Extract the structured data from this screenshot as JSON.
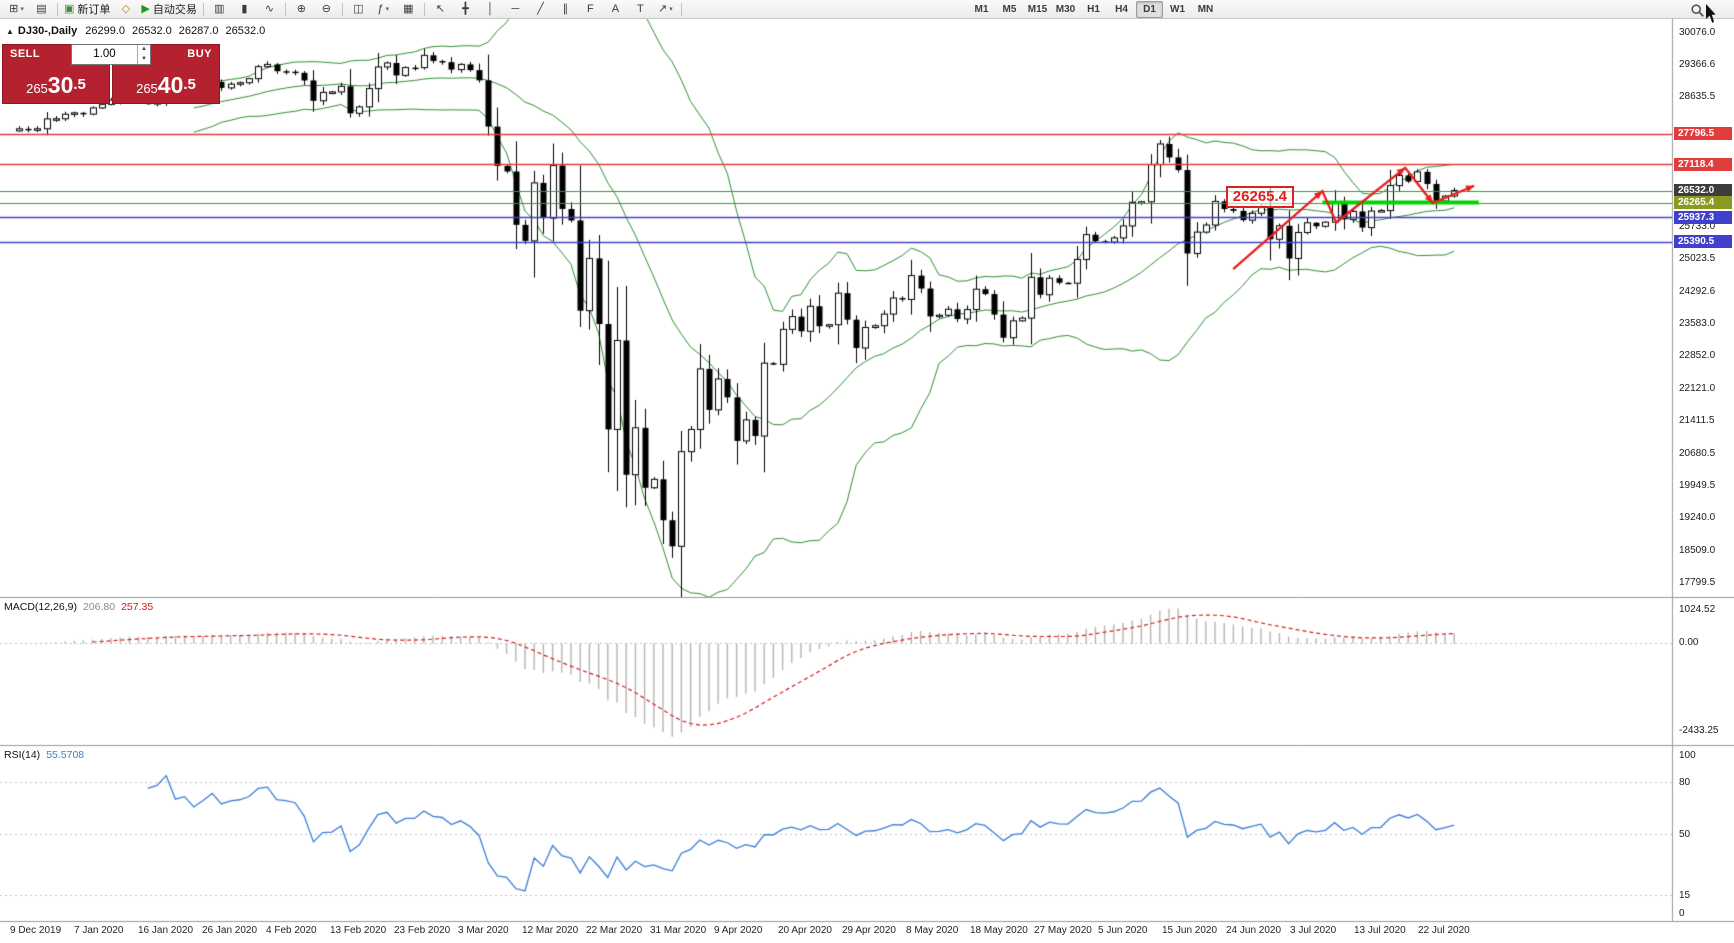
{
  "toolbar": {
    "caret_glyph": "▾",
    "buttons": [
      {
        "name": "new-chart-button",
        "glyph": "⊞",
        "dropdown": true
      },
      {
        "name": "profiles-button",
        "glyph": "▤"
      },
      {
        "type": "sep"
      },
      {
        "name": "new-order-button",
        "glyph": "▣",
        "glyph_color": "#3f8a3f",
        "label": "新订单"
      },
      {
        "name": "metaeditor-button",
        "glyph": "◇",
        "glyph_color": "#b58a1e"
      },
      {
        "name": "autotrading-button",
        "glyph": "▶",
        "glyph_color": "#1a9c1a",
        "label": "自动交易"
      },
      {
        "type": "sep"
      },
      {
        "name": "bar-chart-button",
        "glyph": "▥"
      },
      {
        "name": "candlestick-chart-button",
        "glyph": "▮"
      },
      {
        "name": "line-chart-button",
        "glyph": "∿"
      },
      {
        "type": "sep"
      },
      {
        "name": "zoom-in-button",
        "glyph": "⊕"
      },
      {
        "name": "zoom-out-button",
        "glyph": "⊖"
      },
      {
        "type": "sep"
      },
      {
        "name": "tile-windows-button",
        "glyph": "◫"
      },
      {
        "name": "indicators-button",
        "glyph": "ƒ",
        "dropdown": true
      },
      {
        "name": "objects-list-button",
        "glyph": "▦"
      },
      {
        "type": "sep"
      },
      {
        "name": "cursor-button",
        "glyph": "↖"
      },
      {
        "name": "crosshair-button",
        "glyph": "╋"
      },
      {
        "name": "vertical-line-button",
        "glyph": "│"
      },
      {
        "name": "horizontal-line-button",
        "glyph": "─"
      },
      {
        "name": "trendline-button",
        "glyph": "╱"
      },
      {
        "name": "channel-button",
        "glyph": "∥"
      },
      {
        "name": "fibonacci-button",
        "glyph": "F"
      },
      {
        "name": "text-button",
        "glyph": "A"
      },
      {
        "name": "label-button",
        "glyph": "T"
      },
      {
        "name": "arrow-tools-button",
        "glyph": "↗",
        "dropdown": true
      },
      {
        "type": "sep"
      }
    ],
    "timeframes": [
      {
        "label": "M1"
      },
      {
        "label": "M5"
      },
      {
        "label": "M15"
      },
      {
        "label": "M30"
      },
      {
        "label": "H1"
      },
      {
        "label": "H4"
      },
      {
        "label": "D1",
        "active": true
      },
      {
        "label": "W1"
      },
      {
        "label": "MN"
      }
    ]
  },
  "info": {
    "collapse_glyph": "▲",
    "symbol": "DJ30-,Daily",
    "open": "26299.0",
    "high": "26532.0",
    "low": "26287.0",
    "close": "26532.0"
  },
  "trade_panel": {
    "sell_label": "SELL",
    "buy_label": "BUY",
    "volume": "1.00",
    "spin_up_glyph": "▲",
    "spin_down_glyph": "▼",
    "sell_main": "265",
    "sell_big": "30",
    "sell_pip": ".5",
    "buy_main": "265",
    "buy_big": "40",
    "buy_pip": ".5"
  },
  "chart": {
    "axis_ticks": [
      "30076.0",
      "29366.6",
      "28635.5",
      "25733.0",
      "25023.5",
      "24292.6",
      "23583.0",
      "22852.0",
      "22121.0",
      "21411.5",
      "20680.5",
      "19949.5",
      "19240.0",
      "18509.0",
      "17799.5"
    ],
    "price_tags": [
      {
        "value": "27796.5",
        "color": "#e23d3d"
      },
      {
        "value": "27118.4",
        "color": "#e23d3d"
      },
      {
        "value": "26532.0",
        "color": "#3d3d3d"
      },
      {
        "value": "26265.4",
        "color": "#8a9a20"
      },
      {
        "value": "25937.3",
        "color": "#4040cc"
      },
      {
        "value": "25390.5",
        "color": "#4040cc"
      }
    ],
    "hlines": [
      {
        "price": 27796.5,
        "color": "#e23d3d",
        "width": 1.5
      },
      {
        "price": 27118.4,
        "color": "#e23d3d",
        "width": 1.5
      },
      {
        "price": 26532.0,
        "color": "#1fa81f",
        "width": 1.2
      },
      {
        "price": 26265.4,
        "color": "#1fa81f",
        "width": 1.2
      },
      {
        "price": 25937.3,
        "color": "#4040cc",
        "width": 1.5
      },
      {
        "price": 25390.5,
        "color": "#4040cc",
        "width": 1.5
      }
    ]
  },
  "annotations": {
    "label_box": {
      "text": "26265.4",
      "index": 131.5,
      "price": 26400
    },
    "support_segment": {
      "price": 26265.4,
      "start_index": 142,
      "end_index": 159,
      "color": "#00d400",
      "width": 4
    },
    "trend_arrows": {
      "color": "#e62020",
      "points": [
        [
          132.3,
          24780
        ],
        [
          142,
          26520
        ],
        [
          143.5,
          25820
        ],
        [
          151,
          27040
        ],
        [
          154,
          26255
        ],
        [
          158.5,
          26640
        ]
      ],
      "arrow_at": [
        1,
        3,
        4,
        5
      ]
    }
  },
  "macd": {
    "label": "MACD(12,26,9)",
    "values": [
      "206.80",
      "257.35"
    ],
    "axis": [
      "1024.52",
      "0.00",
      "-2433.25"
    ],
    "range": [
      1024.52,
      -2433.25
    ],
    "params": [
      12,
      26,
      9
    ]
  },
  "rsi": {
    "label": "RSI(14)",
    "value": "55.5708",
    "axis": [
      100,
      80,
      50,
      15,
      0
    ],
    "levels": [
      80,
      50,
      15
    ],
    "period": 14
  },
  "dates": [
    "9 Dec 2019",
    "7 Jan 2020",
    "16 Jan 2020",
    "26 Jan 2020",
    "4 Feb 2020",
    "13 Feb 2020",
    "23 Feb 2020",
    "3 Mar 2020",
    "12 Mar 2020",
    "22 Mar 2020",
    "31 Mar 2020",
    "9 Apr 2020",
    "20 Apr 2020",
    "29 Apr 2020",
    "8 May 2020",
    "18 May 2020",
    "27 May 2020",
    "5 Jun 2020",
    "15 Jun 2020",
    "24 Jun 2020",
    "3 Jul 2020",
    "13 Jul 2020",
    "22 Jul 2020"
  ],
  "chart_data": {
    "type": "candlestick",
    "symbol": "DJ30-",
    "period": "Daily",
    "ohlc_display": {
      "open": 26299.0,
      "high": 26532.0,
      "low": 26287.0,
      "close": 26532.0
    },
    "ylim": [
      17550,
      30250
    ],
    "x_labels": [
      "9 Dec 2019",
      "7 Jan 2020",
      "16 Jan 2020",
      "26 Jan 2020",
      "4 Feb 2020",
      "13 Feb 2020",
      "23 Feb 2020",
      "3 Mar 2020",
      "12 Mar 2020",
      "22 Mar 2020",
      "31 Mar 2020",
      "9 Apr 2020",
      "20 Apr 2020",
      "29 Apr 2020",
      "8 May 2020",
      "18 May 2020",
      "27 May 2020",
      "5 Jun 2020",
      "15 Jun 2020",
      "24 Jun 2020",
      "3 Jul 2020",
      "13 Jul 2020",
      "22 Jul 2020"
    ],
    "closes": [
      27910,
      27882,
      27911,
      28132,
      28135,
      28236,
      28267,
      28239,
      28377,
      28455,
      28551,
      28516,
      28621,
      28515,
      28462,
      28538,
      28869,
      28635,
      28703,
      28584,
      28745,
      28957,
      28824,
      28907,
      28939,
      29030,
      29298,
      29348,
      29196,
      29186,
      29160,
      28990,
      28536,
      28723,
      28734,
      28859,
      28256,
      28400,
      28808,
      29291,
      29380,
      29103,
      29277,
      29276,
      29551,
      29423,
      29398,
      29232,
      29348,
      29220,
      28992,
      27961,
      27081,
      26958,
      25767,
      25409,
      26703,
      25917,
      27091,
      26121,
      25865,
      23851,
      25018,
      23553,
      21201,
      23186,
      20189,
      21237,
      19899,
      20087,
      19174,
      18592,
      20705,
      21200,
      22552,
      21637,
      22327,
      21917,
      20944,
      21413,
      21053,
      22680,
      22654,
      23434,
      23719,
      23391,
      23950,
      23504,
      23538,
      24242,
      23650,
      23019,
      23476,
      23515,
      23775,
      24134,
      24102,
      24634,
      24346,
      23724,
      23750,
      23883,
      23665,
      23876,
      24331,
      24222,
      23765,
      23248,
      23625,
      23685,
      24597,
      24207,
      24576,
      24474,
      24465,
      24995,
      25548,
      25401,
      25383,
      25475,
      25743,
      26270,
      26282,
      27111,
      27572,
      27272,
      26990,
      25128,
      25605,
      25763,
      26290,
      26120,
      26080,
      25871,
      26025,
      26156,
      25446,
      25746,
      25016,
      25596,
      25813,
      25735,
      25827,
      26287,
      25890,
      26067,
      25706,
      26075,
      26085,
      26643,
      26870,
      26735,
      26950,
      26680,
      26300,
      26410,
      26532
    ],
    "indicators": [
      {
        "name": "Bollinger Bands",
        "period": 20,
        "deviation": 2
      },
      {
        "name": "MACD",
        "params": [
          12,
          26,
          9
        ],
        "current": [
          206.8,
          257.35
        ]
      },
      {
        "name": "RSI",
        "period": 14,
        "current": 55.5708
      }
    ],
    "levels": {
      "resistance_red": [
        27796.5,
        27118.4
      ],
      "support_green": [
        26532.0,
        26265.4
      ],
      "support_blue": [
        25937.3,
        25390.5
      ]
    }
  },
  "colors": {
    "bollinger": "#2f8f2f",
    "candle_up_fill": "#ffffff",
    "candle_down_fill": "#000000",
    "candle_border": "#000000",
    "macd_hist": "#b4b4b4",
    "macd_signal": "#d42020",
    "rsi_line": "#3b7dd8",
    "level_dotted": "#c0c0c8",
    "separator": "#9a9a9a",
    "annotation_red": "#e62020"
  }
}
